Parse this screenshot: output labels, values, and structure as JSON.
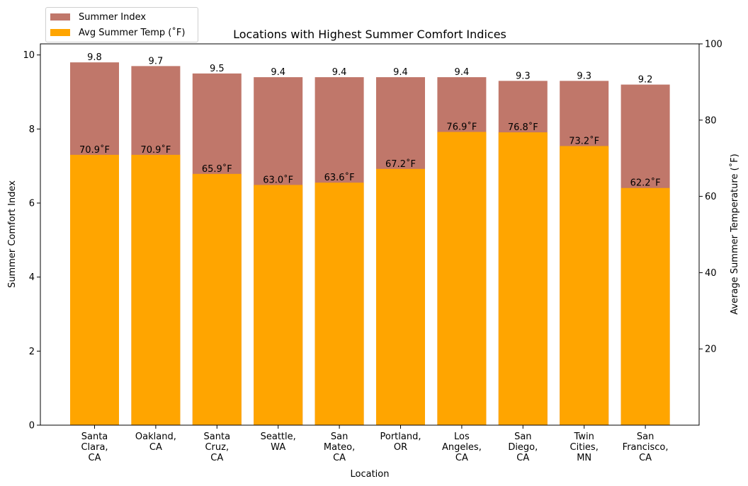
{
  "chart_data": {
    "type": "bar",
    "title": "Locations with Highest Summer Comfort Indices",
    "xlabel": "Location",
    "ylabel_left": "Summer Comfort Index",
    "ylabel_right": "Average Summer Temperature (˚F)",
    "categories": [
      [
        "Santa",
        "Clara,",
        "CA"
      ],
      [
        "Oakland,",
        "CA"
      ],
      [
        "Santa",
        "Cruz,",
        "CA"
      ],
      [
        "Seattle,",
        "WA"
      ],
      [
        "San",
        "Mateo,",
        "CA"
      ],
      [
        "Portland,",
        "OR"
      ],
      [
        "Los",
        "Angeles,",
        "CA"
      ],
      [
        "San",
        "Diego,",
        "CA"
      ],
      [
        "Twin",
        "Cities,",
        "MN"
      ],
      [
        "San",
        "Francisco,",
        "CA"
      ]
    ],
    "series": [
      {
        "name": "Summer Index",
        "axis": "left",
        "color": "#c0776a",
        "values": [
          9.8,
          9.7,
          9.5,
          9.4,
          9.4,
          9.4,
          9.4,
          9.3,
          9.3,
          9.2
        ],
        "labels": [
          "9.8",
          "9.7",
          "9.5",
          "9.4",
          "9.4",
          "9.4",
          "9.4",
          "9.3",
          "9.3",
          "9.2"
        ]
      },
      {
        "name": "Avg Summer Temp (˚F)",
        "axis": "right",
        "color": "#ffa500",
        "values": [
          70.9,
          70.9,
          65.9,
          63.0,
          63.6,
          67.2,
          76.9,
          76.8,
          73.2,
          62.2
        ],
        "labels": [
          "70.9˚F",
          "70.9˚F",
          "65.9˚F",
          "63.0˚F",
          "63.6˚F",
          "67.2˚F",
          "76.9˚F",
          "76.8˚F",
          "73.2˚F",
          "62.2˚F"
        ]
      }
    ],
    "left_axis": {
      "ylim": [
        0,
        10.3
      ],
      "ticks": [
        0,
        2,
        4,
        6,
        8,
        10
      ]
    },
    "right_axis": {
      "ylim": [
        0,
        100
      ],
      "ticks": [
        20,
        40,
        60,
        80,
        100
      ]
    },
    "grid": false,
    "legend": "top-left, outside above plot"
  }
}
